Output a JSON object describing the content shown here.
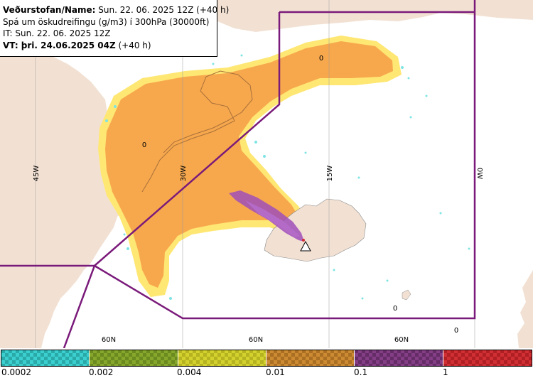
{
  "info": {
    "line1_bold": "Veðurstofan/Name:",
    "line1_rest": " Sun. 22. 06. 2025 12Z (+40 h)",
    "line2": "Spá um öskudreifingu (g/m3) í 300hPa (30000ft)",
    "line3": "IT: Sun. 22. 06. 2025 12Z",
    "line4_bold": "VT: þri. 24.06.2025 04Z",
    "line4_rest": " (+40 h)"
  },
  "map": {
    "longitude_labels": [
      "45W",
      "30W",
      "15W",
      "0W"
    ],
    "latitude_labels": [
      "60N",
      "60N",
      "60N"
    ],
    "contour_labels": [
      "0",
      "0",
      "0",
      "0"
    ],
    "colors": {
      "ocean": "#ffffff",
      "land": "#f2e1d3",
      "ash_low": "#f7a84d",
      "ash_mid": "#ffe774",
      "ash_cyan": "#7fe4e4",
      "ash_high": "#a04fb8",
      "boundary": "#7a1a7a"
    }
  },
  "legend": {
    "tick_labels": [
      "0.0002",
      "0.002",
      "0.004",
      "0.01",
      "0.1",
      "1"
    ],
    "colors": [
      "#3ccfcf",
      "#86a72b",
      "#d3d12e",
      "#cc8a32",
      "#833e85",
      "#d02f33"
    ]
  }
}
